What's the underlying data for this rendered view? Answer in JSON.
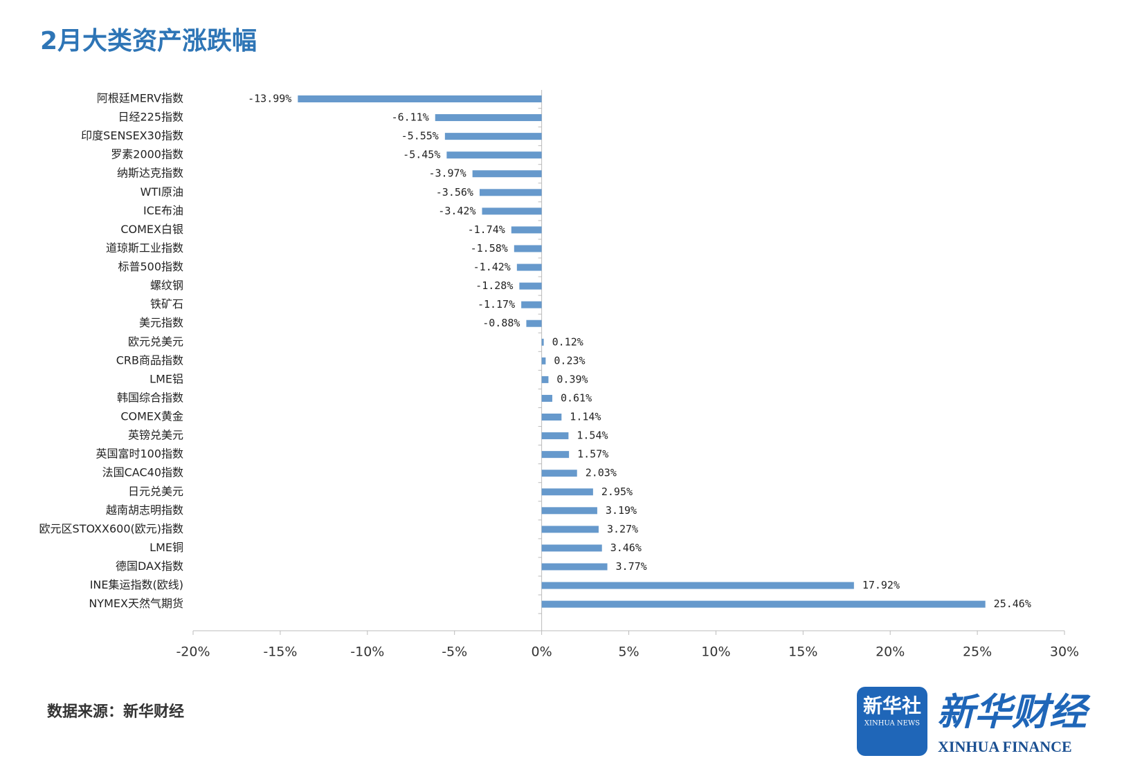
{
  "chart_data": {
    "type": "hbar",
    "title": "2月大类资产涨跌幅",
    "categories": [
      "阿根廷MERV指数",
      "日经225指数",
      "印度SENSEX30指数",
      "罗素2000指数",
      "纳斯达克指数",
      "WTI原油",
      "ICE布油",
      "COMEX白银",
      "道琼斯工业指数",
      "标普500指数",
      "螺纹钢",
      "铁矿石",
      "美元指数",
      "欧元兑美元",
      "CRB商品指数",
      "LME铝",
      "韩国综合指数",
      "COMEX黄金",
      "英镑兑美元",
      "英国富时100指数",
      "法国CAC40指数",
      "日元兑美元",
      "越南胡志明指数",
      "欧元区STOXX600(欧元)指数",
      "LME铜",
      "德国DAX指数",
      "INE集运指数(欧线)",
      "NYMEX天然气期货"
    ],
    "values": [
      -13.99,
      -6.11,
      -5.55,
      -5.45,
      -3.97,
      -3.56,
      -3.42,
      -1.74,
      -1.58,
      -1.42,
      -1.28,
      -1.17,
      -0.88,
      0.12,
      0.23,
      0.39,
      0.61,
      1.14,
      1.54,
      1.57,
      2.03,
      2.95,
      3.19,
      3.27,
      3.46,
      3.77,
      17.92,
      25.46
    ],
    "value_labels": [
      "-13.99%",
      "-6.11%",
      "-5.55%",
      "-5.45%",
      "-3.97%",
      "-3.56%",
      "-3.42%",
      "-1.74%",
      "-1.58%",
      "-1.42%",
      "-1.28%",
      "-1.17%",
      "-0.88%",
      "0.12%",
      "0.23%",
      "0.39%",
      "0.61%",
      "1.14%",
      "1.54%",
      "1.57%",
      "2.03%",
      "2.95%",
      "3.19%",
      "3.27%",
      "3.46%",
      "3.77%",
      "17.92%",
      "25.46%"
    ],
    "color": "#6699cc",
    "xlim": [
      -20,
      30
    ],
    "xticks": [
      {
        "value": -20,
        "label": "-20%"
      },
      {
        "value": -15,
        "label": "-15%"
      },
      {
        "value": -10,
        "label": "-10%"
      },
      {
        "value": -5,
        "label": "-5%"
      },
      {
        "value": 0,
        "label": "0%"
      },
      {
        "value": 5,
        "label": "5%"
      },
      {
        "value": 10,
        "label": "10%"
      },
      {
        "value": 15,
        "label": "15%"
      },
      {
        "value": 20,
        "label": "20%"
      },
      {
        "value": 25,
        "label": "25%"
      },
      {
        "value": 30,
        "label": "30%"
      }
    ],
    "grid": false,
    "source": "数据来源：新华财经"
  },
  "branding": {
    "badge": "新华社",
    "badge_sub": "XINHUA NEWS",
    "name": "新华财经",
    "name_en": "XINHUA FINANCE"
  }
}
